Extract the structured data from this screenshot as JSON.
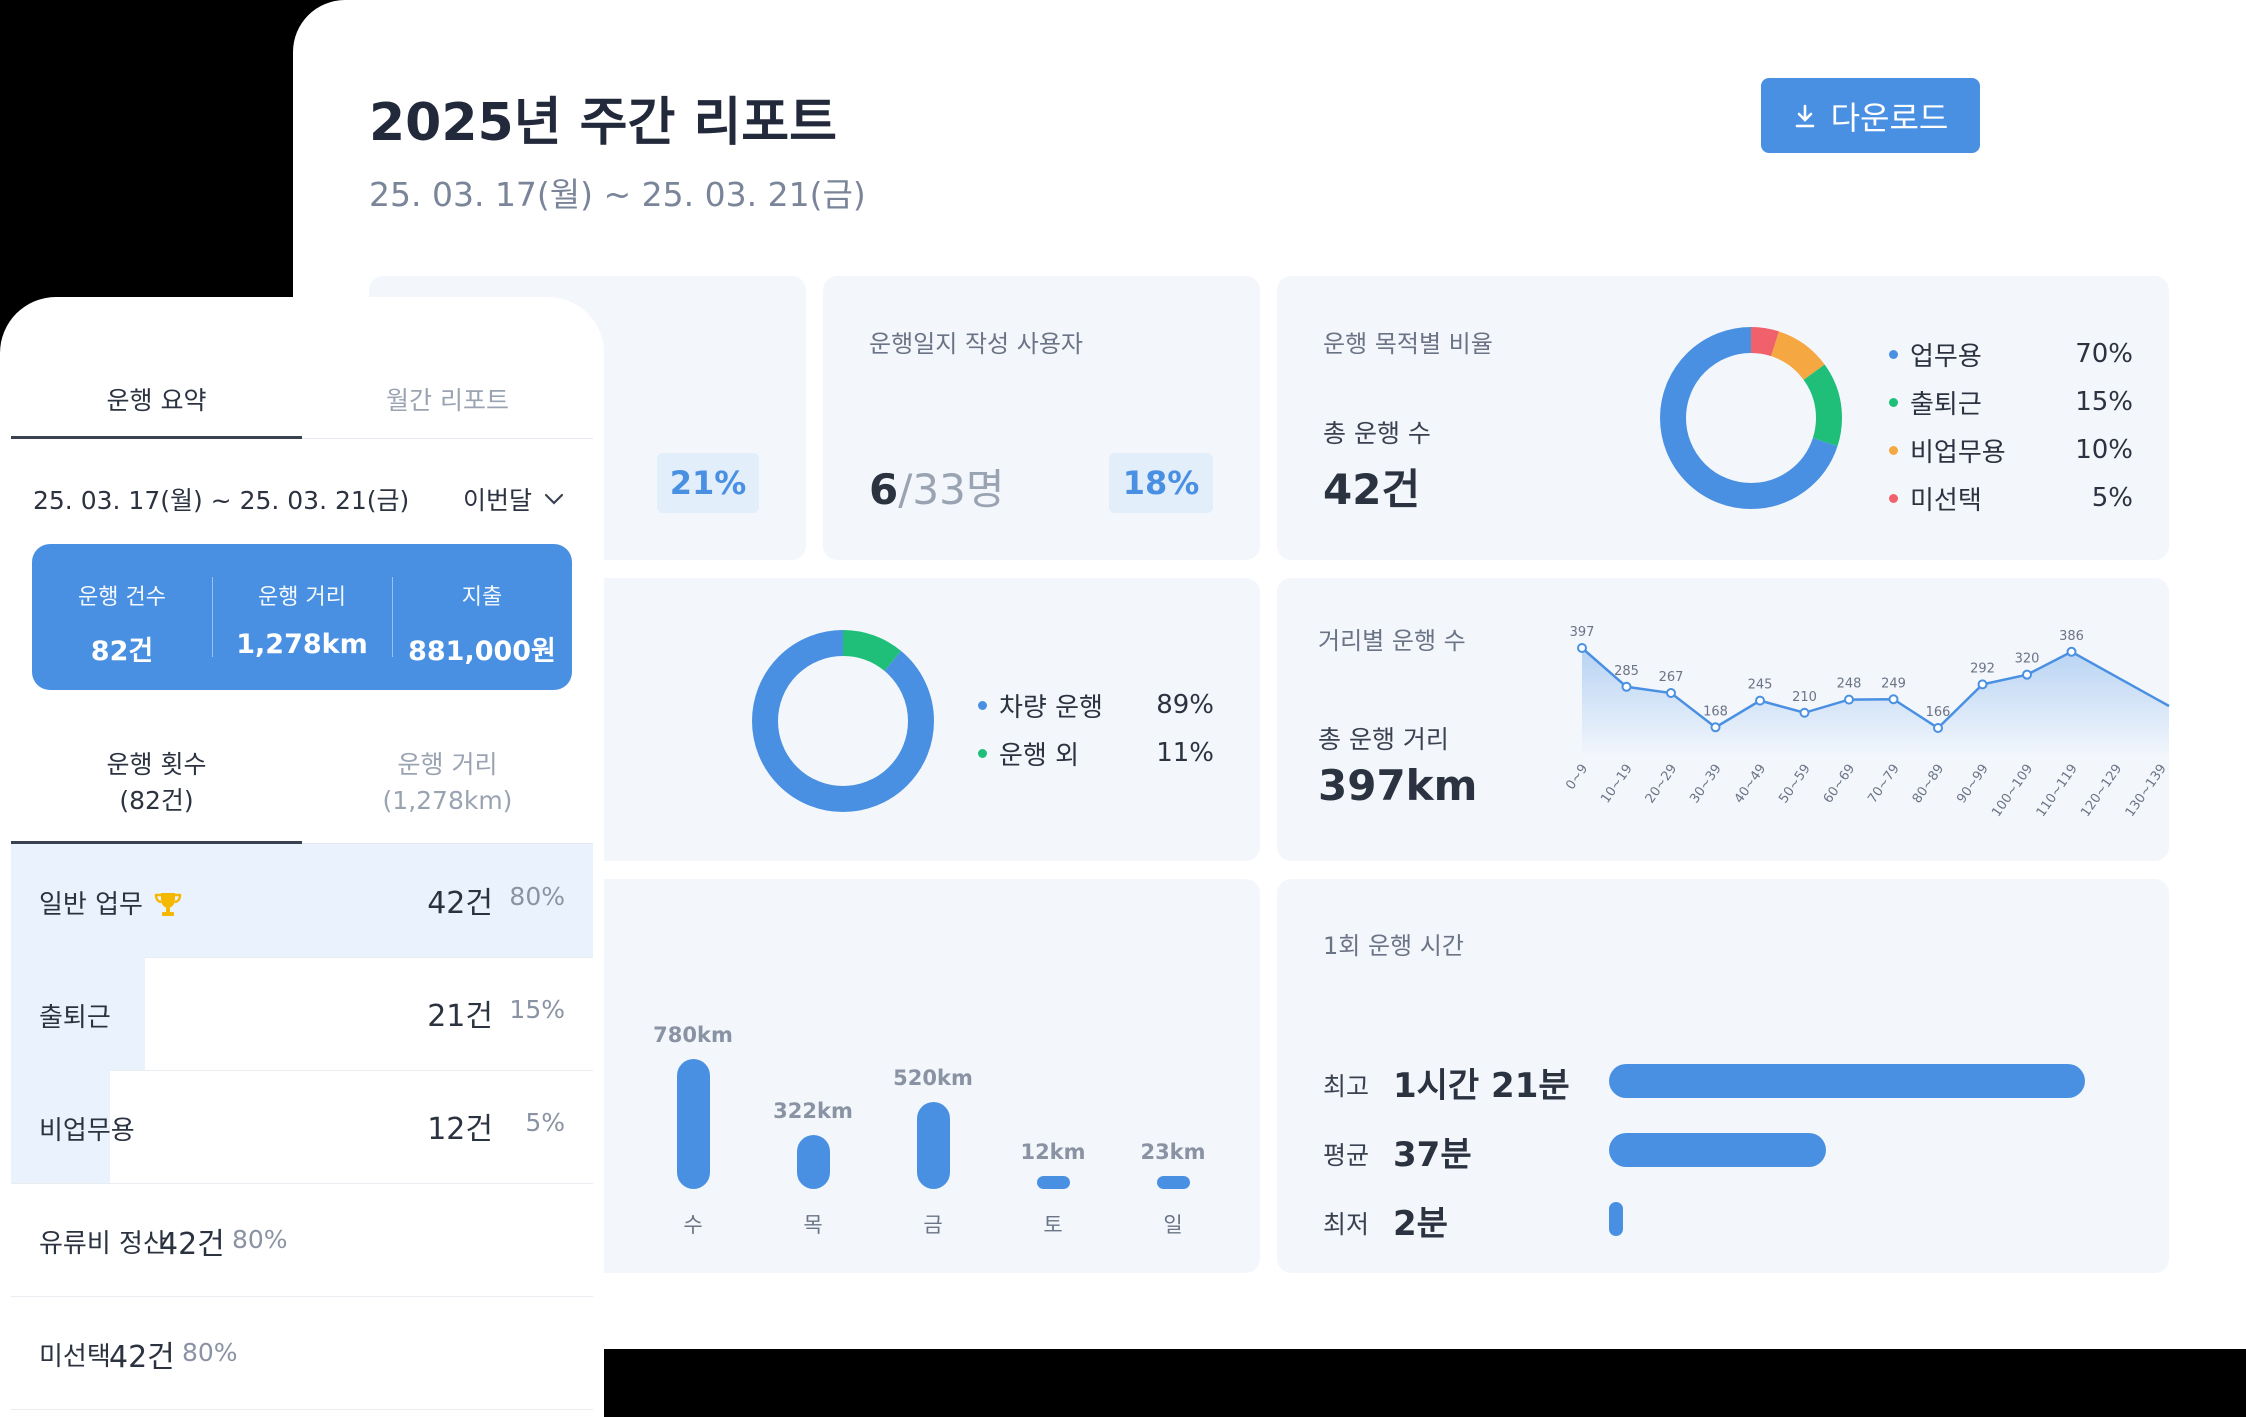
{
  "report": {
    "title": "2025년 주간 리포트",
    "period": "25. 03. 17(월) ~ 25. 03. 21(금)",
    "download_label": "다운로드"
  },
  "cards": {
    "partial_pct": "21%",
    "diary": {
      "label": "운행일지 작성 사용자",
      "count": "6",
      "total": "/33명",
      "pct": "18%"
    },
    "purpose": {
      "label": "운행 목적별 비율",
      "total_label": "총 운행 수",
      "total_value": "42건",
      "items": [
        {
          "name": "업무용",
          "pct": "70%",
          "color": "#4a90e2",
          "value": 70
        },
        {
          "name": "출퇴근",
          "pct": "15%",
          "color": "#1fbf7a",
          "value": 15
        },
        {
          "name": "비업무용",
          "pct": "10%",
          "color": "#f5a841",
          "value": 10
        },
        {
          "name": "미선택",
          "pct": "5%",
          "color": "#f0616b",
          "value": 5
        }
      ]
    },
    "vehicle": {
      "items": [
        {
          "name": "차량 운행",
          "pct": "89%",
          "color": "#4a90e2",
          "value": 89
        },
        {
          "name": "운행 외",
          "pct": "11%",
          "color": "#1fbf7a",
          "value": 11
        }
      ]
    },
    "distance": {
      "label": "거리별 운행 수",
      "total_label": "총 운행 거리",
      "total_value": "397km"
    },
    "weekday": {
      "days": [
        "수",
        "목",
        "금",
        "토",
        "일"
      ],
      "values_label": [
        "780km",
        "322km",
        "520km",
        "12km",
        "23km"
      ],
      "values": [
        780,
        322,
        520,
        12,
        23
      ]
    },
    "drive_time": {
      "label": "1회 운행 시간",
      "rows": [
        {
          "name": "최고",
          "value": "1시간 21분",
          "minutes": 81
        },
        {
          "name": "평균",
          "value": "37분",
          "minutes": 37
        },
        {
          "name": "최저",
          "value": "2분",
          "minutes": 2
        }
      ]
    }
  },
  "chart_data": {
    "type": "area",
    "categories": [
      "0~9",
      "10~19",
      "20~29",
      "30~39",
      "40~49",
      "50~59",
      "60~69",
      "70~79",
      "80~89",
      "90~99",
      "100~109",
      "110~119",
      "120~129",
      "130~139"
    ],
    "values": [
      397,
      285,
      267,
      168,
      245,
      210,
      248,
      249,
      166,
      292,
      320,
      386,
      null,
      null
    ],
    "labels": [
      "397",
      "285",
      "267",
      "168",
      "245",
      "210",
      "248",
      "249",
      "166",
      "292",
      "320",
      "386"
    ],
    "title": "거리별 운행 수"
  },
  "phone": {
    "tabs": [
      "운행 요약",
      "월간 리포트"
    ],
    "date_range": "25. 03. 17(월) ~ 25. 03. 21(금)",
    "period_select": "이번달",
    "summary": [
      {
        "label": "운행 건수",
        "value": "82건"
      },
      {
        "label": "운행 거리",
        "value": "1,278km"
      },
      {
        "label": "지출",
        "value": "881,000원"
      }
    ],
    "subtabs": [
      {
        "line1": "운행 횟수",
        "line2": "(82건)"
      },
      {
        "line1": "운행 거리",
        "line2": "(1,278km)"
      }
    ],
    "rows": [
      {
        "name": "일반 업무",
        "count": "42건",
        "pct": "80%",
        "fill": 1.0
      },
      {
        "name": "출퇴근",
        "count": "21건",
        "pct": "15%",
        "fill": 0.23
      },
      {
        "name": "비업무용",
        "count": "12건",
        "pct": "5%",
        "fill": 0.17
      },
      {
        "name": "유류비 정산",
        "count": "42건",
        "pct": "80%",
        "fill": 0
      },
      {
        "name": "미선택",
        "count": "42건",
        "pct": "80%",
        "fill": 0
      }
    ]
  }
}
